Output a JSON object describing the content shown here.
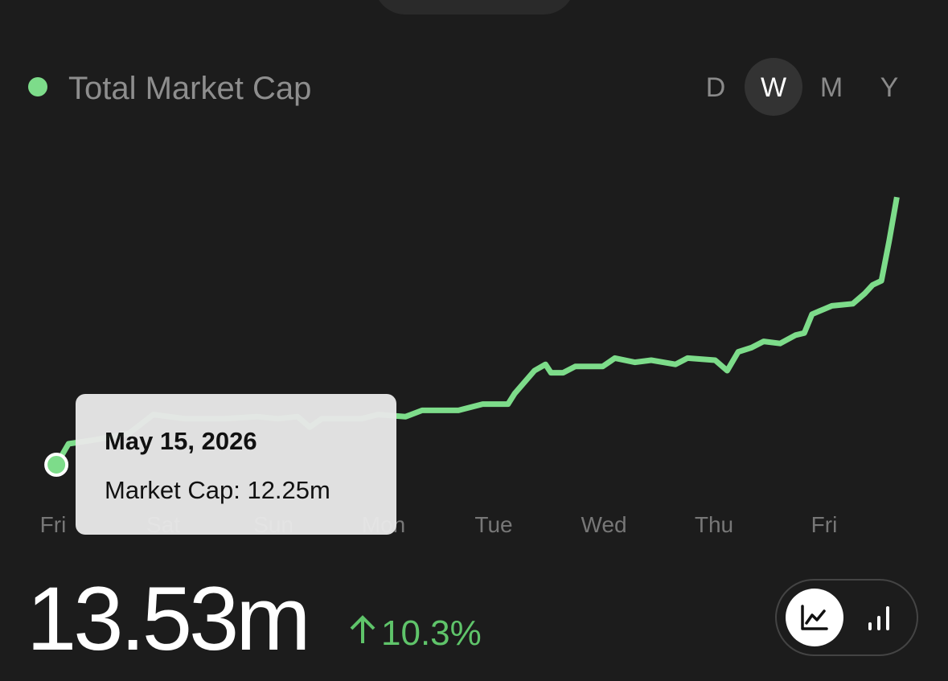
{
  "header": {
    "title": "Total Market Cap",
    "ranges": [
      "D",
      "W",
      "M",
      "Y"
    ],
    "selected_range": 1
  },
  "chart_data": {
    "type": "line",
    "color": "#7ddc8a",
    "x": [
      0.03,
      0.14,
      0.39,
      0.69,
      0.91,
      1.2,
      1.56,
      1.85,
      2.04,
      2.22,
      2.33,
      2.44,
      2.8,
      2.95,
      3.2,
      3.35,
      3.68,
      3.9,
      4.13,
      4.19,
      4.37,
      4.47,
      4.52,
      4.63,
      4.74,
      4.99,
      5.1,
      5.28,
      5.43,
      5.65,
      5.76,
      6.01,
      6.12,
      6.22,
      6.34,
      6.45,
      6.6,
      6.74,
      6.82,
      6.89,
      7.07,
      7.26,
      7.37,
      7.44,
      7.52,
      7.59,
      7.66
    ],
    "values": [
      12.25,
      12.35,
      12.37,
      12.4,
      12.49,
      12.47,
      12.47,
      12.48,
      12.47,
      12.48,
      12.43,
      12.47,
      12.47,
      12.49,
      12.48,
      12.51,
      12.51,
      12.54,
      12.54,
      12.59,
      12.7,
      12.73,
      12.69,
      12.69,
      12.72,
      12.72,
      12.76,
      12.74,
      12.75,
      12.73,
      12.76,
      12.75,
      12.7,
      12.79,
      12.81,
      12.84,
      12.83,
      12.87,
      12.88,
      12.97,
      13.01,
      13.02,
      13.07,
      13.11,
      13.13,
      13.32,
      13.53
    ],
    "xlim": [
      -0.2,
      7.8
    ],
    "ylim": [
      12.0,
      13.7
    ],
    "xticks": [
      {
        "value": 0,
        "label": "Fri"
      },
      {
        "value": 1,
        "label": "Sat"
      },
      {
        "value": 2,
        "label": "Sun"
      },
      {
        "value": 3,
        "label": "Mon"
      },
      {
        "value": 4,
        "label": "Tue"
      },
      {
        "value": 5,
        "label": "Wed"
      },
      {
        "value": 6,
        "label": "Thu"
      },
      {
        "value": 7,
        "label": "Fri"
      }
    ]
  },
  "tooltip": {
    "date": "May 15, 2026",
    "text": "Market Cap: 12.25m"
  },
  "summary": {
    "value": "13.53m",
    "change": "10.3%"
  }
}
